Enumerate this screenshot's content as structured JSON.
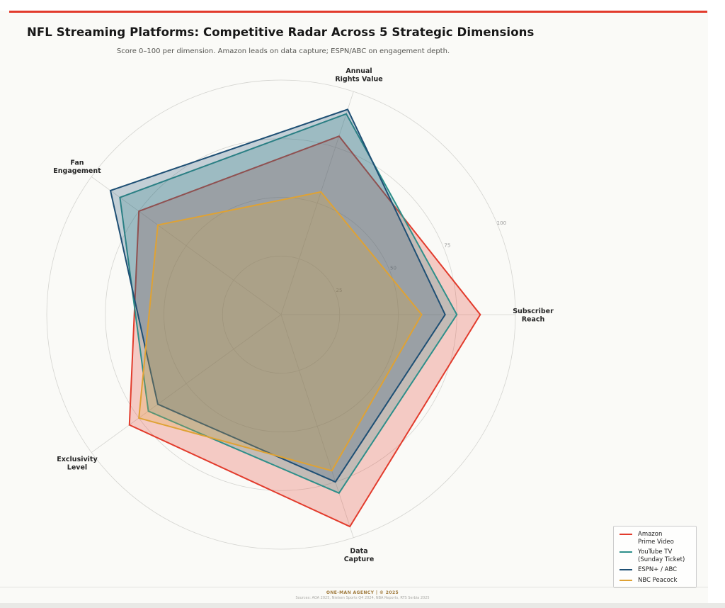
{
  "page": {
    "accent_color": "#e23b2c",
    "figure_background": "#fafaf7"
  },
  "header": {
    "title": "NFL Streaming Platforms: Competitive Radar Across 5 Strategic Dimensions",
    "subtitle": "Score 0–100 per dimension. Amazon leads on data capture; ESPN/ABC on engagement depth."
  },
  "chart_data": {
    "type": "radar",
    "title": "NFL Streaming Platforms: Competitive Radar Across 5 Strategic Dimensions",
    "subtitle": "Score 0–100 per dimension. Amazon leads on data capture; ESPN/ABC on engagement depth.",
    "categories": [
      "Annual Rights Value",
      "Subscriber Reach",
      "Data Capture",
      "Exclusivity Level",
      "Fan Engagement"
    ],
    "category_labels": [
      [
        "Annual",
        "Rights Value"
      ],
      [
        "Subscriber",
        "Reach"
      ],
      [
        "Data",
        "Capture"
      ],
      [
        "Exclusivity",
        "Level"
      ],
      [
        "Fan",
        "Engagement"
      ]
    ],
    "axis_angles_deg": [
      72,
      0,
      -72,
      -144,
      144
    ],
    "rmax": 100,
    "radial_ticks": [
      25,
      50,
      75,
      100
    ],
    "tick_label_angle_deg": 22.5,
    "grid": true,
    "legend_position": "bottom-right",
    "series": [
      {
        "name": "Amazon Prime Video",
        "legend_lines": [
          "Amazon",
          "Prime Video"
        ],
        "color": "#e23b2c",
        "values": [
          80,
          85,
          95,
          80,
          75
        ]
      },
      {
        "name": "YouTube TV (Sunday Ticket)",
        "legend_lines": [
          "YouTube TV",
          "(Sunday Ticket)"
        ],
        "color": "#2e8f8a",
        "values": [
          90,
          75,
          80,
          70,
          85
        ]
      },
      {
        "name": "ESPN+ / ABC",
        "legend_lines": [
          "ESPN+ / ABC"
        ],
        "color": "#1e4f74",
        "values": [
          92,
          70,
          75,
          65,
          90
        ]
      },
      {
        "name": "NBC Peacock",
        "legend_lines": [
          "NBC Peacock"
        ],
        "color": "#dfa234",
        "values": [
          55,
          60,
          70,
          75,
          65
        ]
      }
    ]
  },
  "footer": {
    "brand": "ONE-MAN AGENCY | © 2025",
    "sources": "Sources: AOA 2025, Nielsen Sports Q4 2024, NBA Reports, RTS Serbia 2025"
  }
}
